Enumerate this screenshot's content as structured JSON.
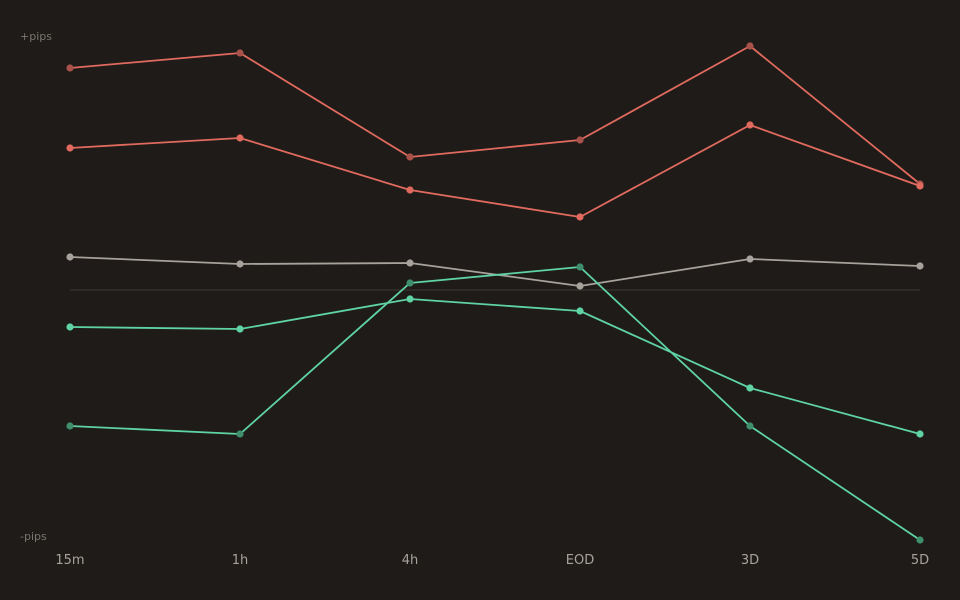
{
  "chart_data": {
    "type": "line",
    "categories": [
      "15m",
      "1h",
      "4h",
      "EOD",
      "3D",
      "5D"
    ],
    "y_top_label": "+pips",
    "y_bottom_label": "-pips",
    "ylim": [
      -100,
      100
    ],
    "baseline": 0,
    "series": [
      {
        "values": [
          88.8,
          94.8,
          53.2,
          60.0,
          97.6,
          42.4
        ],
        "color": "#e06a5e",
        "marker": "#a9524a"
      },
      {
        "values": [
          56.8,
          60.8,
          40.0,
          29.2,
          66.0,
          41.6
        ],
        "color": "#e06a5e",
        "marker": "#e06a5e"
      },
      {
        "values": [
          13.2,
          10.4,
          10.8,
          1.6,
          12.4,
          9.6
        ],
        "color": "#a8a29c",
        "marker": "#a8a29c"
      },
      {
        "values": [
          -14.8,
          -15.6,
          -3.6,
          -8.4,
          -39.2,
          -57.6
        ],
        "color": "#5fd3a4",
        "marker": "#5fd3a4"
      },
      {
        "values": [
          -54.4,
          -57.6,
          2.8,
          9.2,
          -54.4,
          -100
        ],
        "color": "#5fd3a4",
        "marker": "#3f8f6c"
      }
    ],
    "colors": {
      "background": "#1e1b18",
      "baseline": "#33302c"
    }
  }
}
